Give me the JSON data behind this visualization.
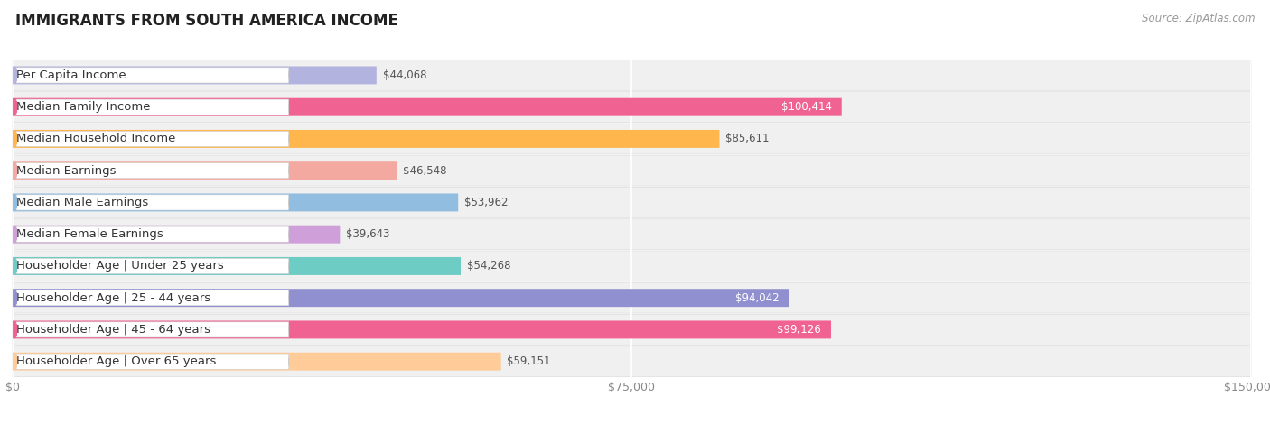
{
  "title": "IMMIGRANTS FROM SOUTH AMERICA INCOME",
  "source": "Source: ZipAtlas.com",
  "categories": [
    "Per Capita Income",
    "Median Family Income",
    "Median Household Income",
    "Median Earnings",
    "Median Male Earnings",
    "Median Female Earnings",
    "Householder Age | Under 25 years",
    "Householder Age | 25 - 44 years",
    "Householder Age | 45 - 64 years",
    "Householder Age | Over 65 years"
  ],
  "values": [
    44068,
    100414,
    85611,
    46548,
    53962,
    39643,
    54268,
    94042,
    99126,
    59151
  ],
  "bar_colors": [
    "#b3b3e0",
    "#f06292",
    "#ffb74d",
    "#f4a9a0",
    "#90bde0",
    "#ce9fd8",
    "#6dccc4",
    "#9090d0",
    "#f06292",
    "#ffcc99"
  ],
  "label_colors": [
    "#555555",
    "#ffffff",
    "#555555",
    "#555555",
    "#555555",
    "#555555",
    "#555555",
    "#ffffff",
    "#ffffff",
    "#555555"
  ],
  "xmax": 150000,
  "xticks": [
    0,
    75000,
    150000
  ],
  "xticklabels": [
    "$0",
    "$75,000",
    "$150,000"
  ],
  "fig_background": "#ffffff",
  "row_background": "#f0f0f0",
  "title_fontsize": 12,
  "source_fontsize": 8.5,
  "bar_label_fontsize": 8.5,
  "cat_label_fontsize": 9.5
}
